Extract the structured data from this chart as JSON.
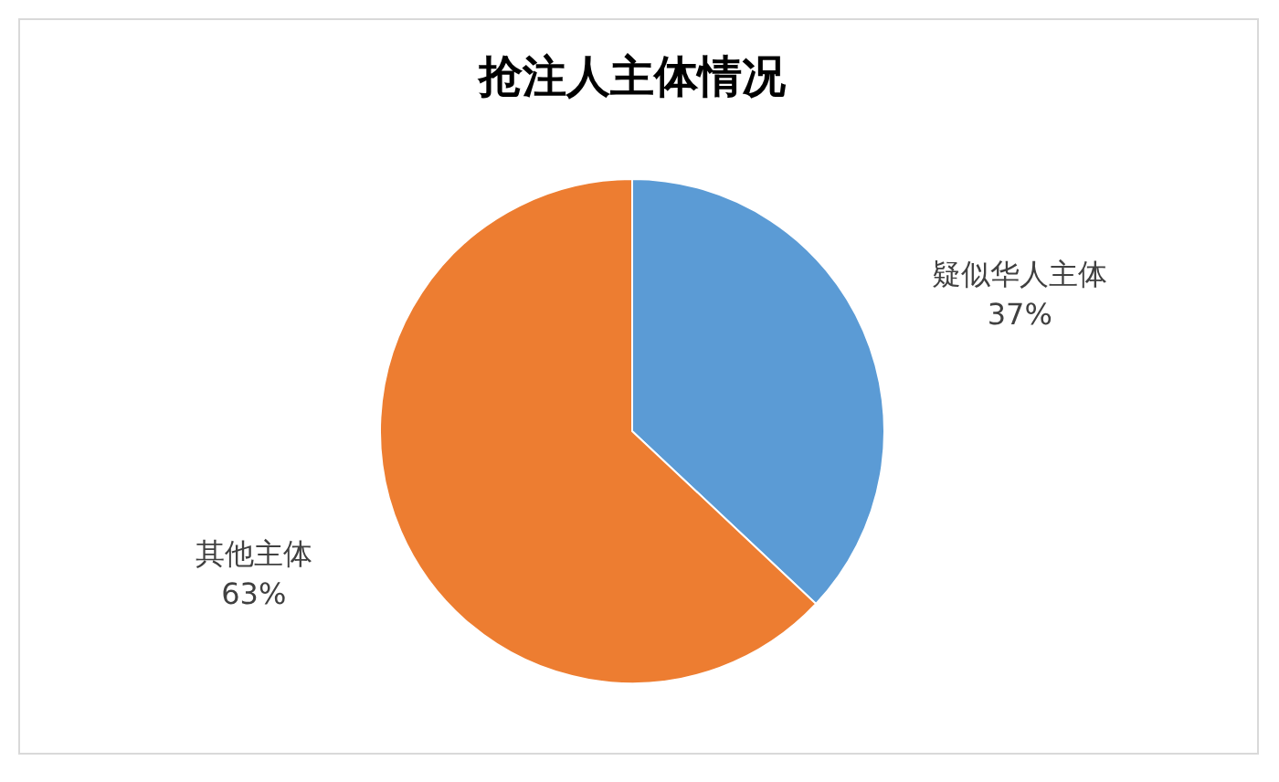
{
  "chart_data": {
    "type": "pie",
    "title": "抢注人主体情况",
    "categories": [
      "疑似华人主体",
      "其他主体"
    ],
    "values": [
      37,
      63
    ],
    "colors": [
      "#5b9bd5",
      "#ed7d31"
    ],
    "value_labels": [
      "37%",
      "63%"
    ]
  }
}
